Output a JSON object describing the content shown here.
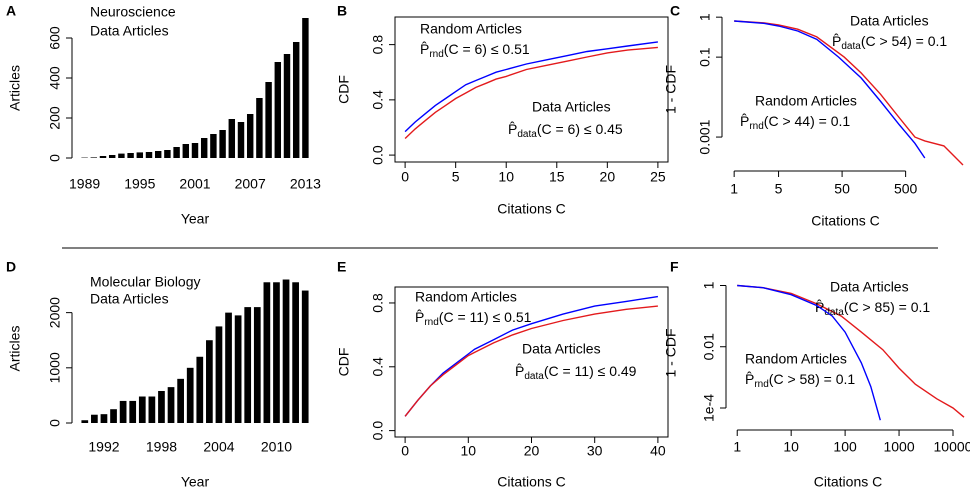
{
  "chart_data": [
    {
      "type": "bar",
      "panel_label": "A",
      "title": "Neuroscience",
      "annotation": {
        "text": "Data Articles",
        "color": "#e31a1c"
      },
      "xlabel": "Year",
      "ylabel": "Articles",
      "color": "#000000",
      "categories": [
        "1989",
        null,
        null,
        null,
        null,
        null,
        "1995",
        null,
        null,
        null,
        null,
        null,
        "2001",
        null,
        null,
        null,
        null,
        null,
        "2007",
        null,
        null,
        null,
        null,
        null,
        "2013"
      ],
      "values": [
        2,
        3,
        10,
        15,
        22,
        25,
        28,
        30,
        35,
        40,
        55,
        70,
        75,
        100,
        120,
        140,
        195,
        180,
        220,
        300,
        380,
        480,
        520,
        580,
        700
      ],
      "ylim": [
        0,
        700
      ],
      "yticks": [
        0,
        200,
        400,
        600
      ]
    },
    {
      "type": "line",
      "panel_label": "B",
      "xlabel": "Citations  C",
      "ylabel": "CDF",
      "xlim": [
        -1,
        26
      ],
      "xticks": [
        0,
        5,
        10,
        15,
        20,
        25
      ],
      "ylim": [
        -0.05,
        1.0
      ],
      "yticks": [
        {
          "value": 0,
          "label": "0.0"
        },
        0.4,
        0.8
      ],
      "series": [
        {
          "name": "Random Articles",
          "color": "#0000ff",
          "x": [
            0,
            1,
            2,
            3,
            4,
            5,
            6,
            7,
            8,
            9,
            10,
            12,
            14,
            16,
            18,
            20,
            22,
            25
          ],
          "values": [
            0.17,
            0.24,
            0.3,
            0.36,
            0.41,
            0.46,
            0.51,
            0.54,
            0.57,
            0.6,
            0.62,
            0.66,
            0.69,
            0.72,
            0.75,
            0.77,
            0.79,
            0.82
          ],
          "formula": {
            "symbol": "P̂",
            "sub": "rnd",
            "rest": "(C = 6) ≤ 0.51"
          }
        },
        {
          "name": "Data Articles",
          "color": "#e31a1c",
          "x": [
            0,
            1,
            2,
            3,
            4,
            5,
            6,
            7,
            8,
            9,
            10,
            12,
            14,
            16,
            18,
            20,
            22,
            25
          ],
          "values": [
            0.12,
            0.19,
            0.25,
            0.31,
            0.36,
            0.41,
            0.45,
            0.49,
            0.52,
            0.55,
            0.57,
            0.62,
            0.65,
            0.68,
            0.71,
            0.74,
            0.76,
            0.78
          ],
          "formula": {
            "symbol": "P̂",
            "sub": "data",
            "rest": "(C = 6) ≤ 0.45"
          }
        }
      ]
    },
    {
      "type": "line",
      "panel_label": "C",
      "xlabel": "Citations  C",
      "ylabel": "1 - CDF",
      "xlog": true,
      "ylog": true,
      "xlim": [
        0.8,
        4000
      ],
      "xticks": [
        1,
        5,
        50,
        500
      ],
      "ylim": [
        0.0002,
        1.2
      ],
      "yticks": [
        1,
        0.1,
        0.001
      ],
      "series": [
        {
          "name": "Data Articles",
          "color": "#e31a1c",
          "x": [
            1,
            3,
            5,
            10,
            20,
            54,
            100,
            200,
            400,
            700,
            1000,
            2000,
            4000
          ],
          "values": [
            0.8,
            0.72,
            0.64,
            0.5,
            0.32,
            0.1,
            0.04,
            0.012,
            0.003,
            0.001,
            0.0008,
            0.0006,
            0.0002
          ],
          "formula": {
            "symbol": "P̂",
            "sub": "data",
            "rest": "(C > 54) = 0.1"
          }
        },
        {
          "name": "Random Articles",
          "color": "#0000ff",
          "x": [
            1,
            3,
            5,
            10,
            20,
            44,
            100,
            200,
            400,
            700,
            1000
          ],
          "values": [
            0.8,
            0.7,
            0.6,
            0.45,
            0.28,
            0.1,
            0.03,
            0.008,
            0.002,
            0.0007,
            0.0003
          ],
          "formula": {
            "symbol": "P̂",
            "sub": "rnd",
            "rest": "(C > 44) = 0.1"
          }
        }
      ]
    },
    {
      "type": "bar",
      "panel_label": "D",
      "title": "Molecular Biology",
      "annotation": {
        "text": "Data Articles",
        "color": "#e31a1c"
      },
      "xlabel": "Year",
      "ylabel": "Articles",
      "color": "#000000",
      "categories": [
        null,
        null,
        "1992",
        null,
        null,
        null,
        null,
        null,
        "1998",
        null,
        null,
        null,
        null,
        null,
        "2004",
        null,
        null,
        null,
        null,
        null,
        "2010",
        null,
        null,
        null
      ],
      "values": [
        50,
        150,
        160,
        250,
        400,
        400,
        480,
        480,
        580,
        650,
        800,
        1000,
        1200,
        1500,
        1750,
        2000,
        1950,
        2100,
        2100,
        2550,
        2550,
        2600,
        2550,
        2400
      ],
      "ylim": [
        0,
        2700
      ],
      "yticks": [
        0,
        1000,
        2000
      ]
    },
    {
      "type": "line",
      "panel_label": "E",
      "xlabel": "Citations  C",
      "ylabel": "CDF",
      "xlim": [
        -1.6,
        41.6
      ],
      "xticks": [
        0,
        10,
        20,
        30,
        40
      ],
      "ylim": [
        -0.04,
        0.9
      ],
      "yticks": [
        {
          "value": 0,
          "label": "0.0"
        },
        0.4,
        0.8
      ],
      "series": [
        {
          "name": "Random Articles",
          "color": "#0000ff",
          "x": [
            0,
            2,
            4,
            6,
            8,
            10,
            11,
            14,
            17,
            20,
            25,
            30,
            35,
            40
          ],
          "values": [
            0.09,
            0.19,
            0.28,
            0.36,
            0.42,
            0.48,
            0.51,
            0.57,
            0.63,
            0.67,
            0.73,
            0.78,
            0.81,
            0.84
          ],
          "formula": {
            "symbol": "P̂",
            "sub": "rnd",
            "rest": "(C = 11) ≤ 0.51"
          }
        },
        {
          "name": "Data Articles",
          "color": "#e31a1c",
          "x": [
            0,
            2,
            4,
            6,
            8,
            10,
            11,
            14,
            17,
            20,
            25,
            30,
            35,
            40
          ],
          "values": [
            0.09,
            0.19,
            0.28,
            0.35,
            0.41,
            0.47,
            0.49,
            0.55,
            0.6,
            0.64,
            0.69,
            0.73,
            0.76,
            0.78
          ],
          "formula": {
            "symbol": "P̂",
            "sub": "data",
            "rest": "(C = 11) ≤ 0.49"
          }
        }
      ]
    },
    {
      "type": "line",
      "panel_label": "F",
      "xlabel": "Citations  C",
      "ylabel": "1 - CDF",
      "xlog": true,
      "ylog": true,
      "xlim": [
        0.8,
        16000
      ],
      "xticks": [
        1,
        10,
        100,
        1000,
        10000
      ],
      "ylim": [
        3e-05,
        1.3
      ],
      "yticks": [
        1,
        0.01,
        {
          "value": 0.0001,
          "label": "1e-4"
        }
      ],
      "series": [
        {
          "name": "Data Articles",
          "color": "#e31a1c",
          "x": [
            1,
            3,
            10,
            30,
            85,
            200,
            500,
            1000,
            2000,
            5000,
            10000,
            16000
          ],
          "values": [
            1,
            0.85,
            0.55,
            0.25,
            0.1,
            0.03,
            0.008,
            0.002,
            0.0006,
            0.0002,
            0.0001,
            5e-05
          ],
          "formula": {
            "symbol": "P̂",
            "sub": "data",
            "rest": "(C > 85) = 0.1"
          }
        },
        {
          "name": "Random Articles",
          "color": "#0000ff",
          "x": [
            1,
            3,
            10,
            30,
            58,
            100,
            200,
            300,
            450
          ],
          "values": [
            1,
            0.85,
            0.5,
            0.22,
            0.1,
            0.03,
            0.003,
            0.0005,
            4e-05
          ],
          "formula": {
            "symbol": "P̂",
            "sub": "rnd",
            "rest": "(C > 58) = 0.1"
          }
        }
      ]
    }
  ]
}
